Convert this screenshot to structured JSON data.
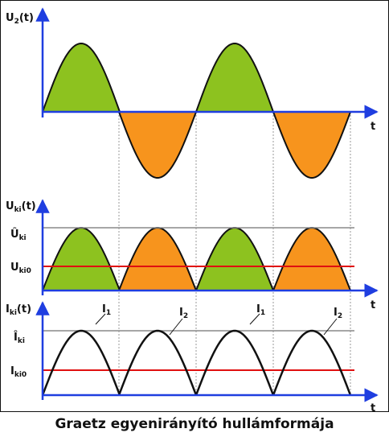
{
  "figure": {
    "caption": "Graetz egyenirányító hullámformája"
  },
  "colors": {
    "positive_fill": "#8dc21f",
    "negative_fill": "#f7941d",
    "axis": "#1f3ee0",
    "curve": "#111111",
    "red_line": "#e01010",
    "gray_line": "#8a8a8a",
    "guide": "#9a9a9a"
  },
  "panels": {
    "u2": {
      "ylabel_main": "U",
      "ylabel_sub": "2",
      "ylabel_tail": "(t)",
      "xlabel": "t"
    },
    "uki": {
      "ylabel_main": "U",
      "ylabel_sub": "ki",
      "ylabel_tail": "(t)",
      "xlabel": "t",
      "peak_main": "Û",
      "peak_sub": "ki",
      "avg_main": "U",
      "avg_sub": "ki0"
    },
    "iki": {
      "ylabel_main": "I",
      "ylabel_sub": "ki",
      "ylabel_tail": "(t)",
      "xlabel": "t",
      "peak_main": "Î",
      "peak_sub": "ki",
      "avg_main": "I",
      "avg_sub": "ki0",
      "curve_labels": [
        {
          "main": "I",
          "sub": "1"
        },
        {
          "main": "I",
          "sub": "2"
        },
        {
          "main": "I",
          "sub": "1"
        },
        {
          "main": "I",
          "sub": "2"
        }
      ]
    }
  }
}
